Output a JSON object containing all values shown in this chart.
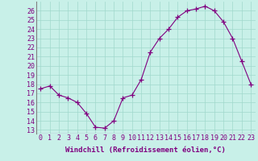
{
  "x": [
    0,
    1,
    2,
    3,
    4,
    5,
    6,
    7,
    8,
    9,
    10,
    11,
    12,
    13,
    14,
    15,
    16,
    17,
    18,
    19,
    20,
    21,
    22,
    23
  ],
  "y": [
    17.5,
    17.8,
    16.8,
    16.5,
    16.0,
    14.8,
    13.3,
    13.2,
    14.0,
    16.5,
    16.8,
    18.5,
    21.5,
    23.0,
    24.0,
    25.3,
    26.0,
    26.2,
    26.5,
    26.0,
    24.8,
    23.0,
    20.5,
    18.0
  ],
  "line_color": "#800080",
  "marker": "+",
  "marker_size": 4,
  "bg_color": "#c8f0e8",
  "grid_color": "#a0d8cc",
  "xlabel": "Windchill (Refroidissement éolien,°C)",
  "yticks": [
    13,
    14,
    15,
    16,
    17,
    18,
    19,
    20,
    21,
    22,
    23,
    24,
    25,
    26
  ],
  "ylim": [
    12.6,
    27.0
  ],
  "xlim": [
    -0.5,
    23.5
  ],
  "xlabel_fontsize": 6.5,
  "tick_fontsize": 6,
  "tick_color": "#800080",
  "border_color": "#800080",
  "border_left_color": "#606060"
}
